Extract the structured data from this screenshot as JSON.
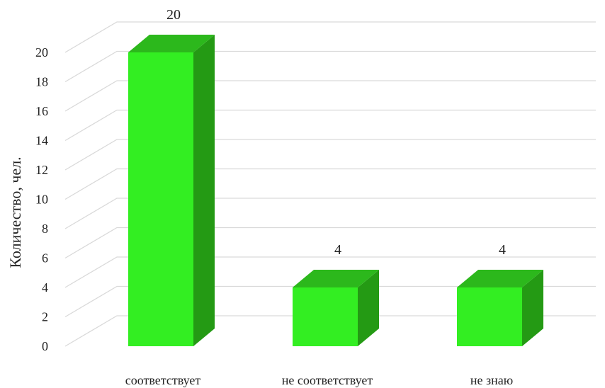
{
  "chart_data": {
    "type": "bar",
    "categories": [
      "соответствует",
      "не соответствует",
      "не знаю"
    ],
    "values": [
      20,
      4,
      4
    ],
    "title": "",
    "xlabel": "",
    "ylabel": "Количество, чел.",
    "ylim": [
      0,
      20
    ],
    "yticks": [
      0,
      2,
      4,
      6,
      8,
      10,
      12,
      14,
      16,
      18,
      20
    ],
    "grid": true,
    "legend": "none",
    "bar_color": "#33ee22",
    "bar_side_color": "#249a14",
    "bar_top_color": "#2cb81c"
  }
}
